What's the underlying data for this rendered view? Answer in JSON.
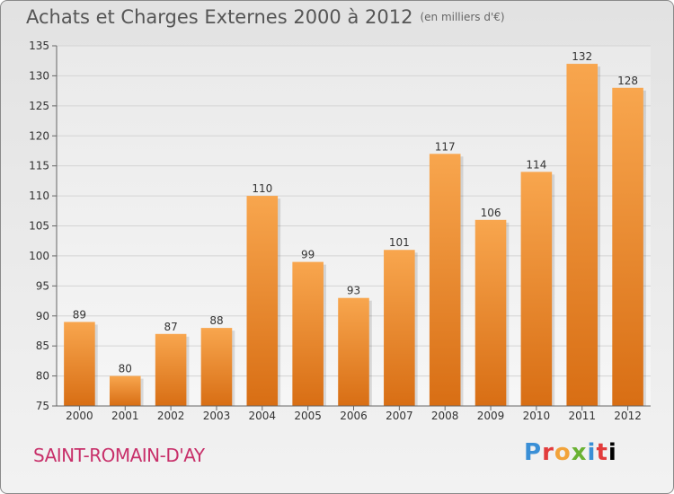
{
  "header": {
    "title": "Achats et Charges Externes 2000 à 2012",
    "unit": "(en milliers d'€)"
  },
  "footer": {
    "commune": "SAINT-ROMAIN-D'AY",
    "logo_text": "Proxiti"
  },
  "colors": {
    "bar_top": "#f8a64e",
    "bar_bottom": "#d86e14",
    "label": "#333333",
    "grid": "#d4d4d4",
    "commune": "#c8306a"
  },
  "chart_data": {
    "type": "bar",
    "title": "Achats et Charges Externes 2000 à 2012",
    "subtitle": "(en milliers d'€)",
    "xlabel": "",
    "ylabel": "",
    "categories": [
      "2000",
      "2001",
      "2002",
      "2003",
      "2004",
      "2005",
      "2006",
      "2007",
      "2008",
      "2009",
      "2010",
      "2011",
      "2012"
    ],
    "values": [
      89,
      80,
      87,
      88,
      110,
      99,
      93,
      101,
      117,
      106,
      114,
      132,
      128
    ],
    "ylim": [
      75,
      135
    ],
    "yticks": [
      75,
      80,
      85,
      90,
      95,
      100,
      105,
      110,
      115,
      120,
      125,
      130,
      135
    ],
    "grid": true,
    "legend": "none"
  }
}
